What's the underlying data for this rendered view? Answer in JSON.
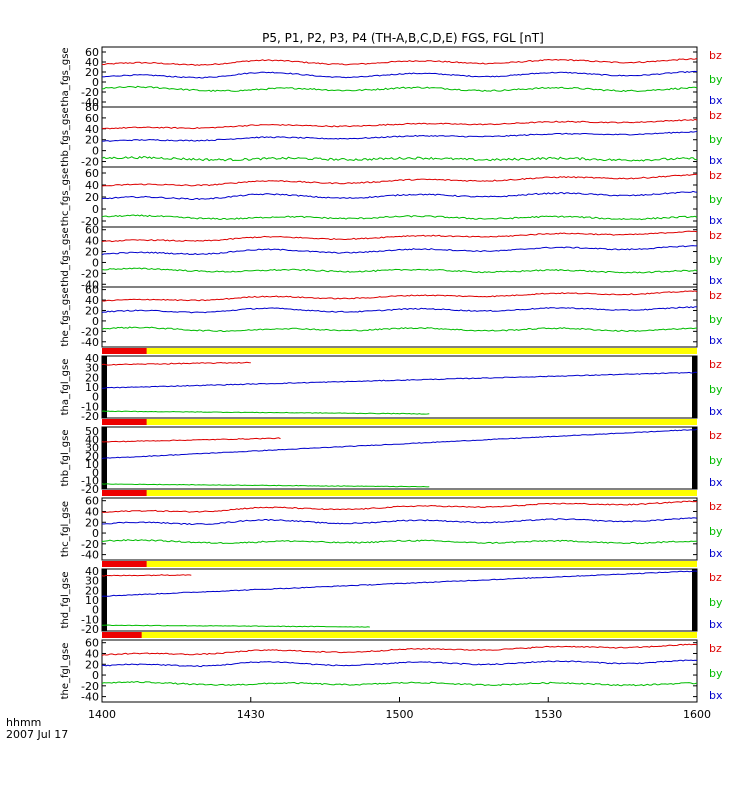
{
  "chart_data": {
    "type": "line",
    "title": "P5, P1, P2, P3, P4 (TH-A,B,C,D,E) FGS, FGL [nT]",
    "x_axis": {
      "ticks": [
        1400,
        1430,
        1500,
        1530,
        1600
      ],
      "tick_labels": [
        "1400",
        "1430",
        "1500",
        "1530",
        "1600"
      ],
      "range_minutes": [
        0,
        120
      ],
      "tick_minutes": [
        0,
        30,
        60,
        90,
        120
      ],
      "label_line1": "hhmm",
      "label_line2": "2007 Jul 17"
    },
    "series_colors": {
      "bz": "#dd0000",
      "by": "#00bb00",
      "bx": "#0000cc"
    },
    "bar_colors": {
      "red": "#ee0000",
      "yellow": "#ffff00",
      "black": "#000000"
    },
    "panels": [
      {
        "ylabel": "tha_fgs_gse",
        "ylim": [
          -50,
          70
        ],
        "ytick_values": [
          60,
          40,
          20,
          0,
          -20,
          -40
        ],
        "ytick_labels": [
          "60",
          "40",
          "20",
          "0",
          "-20",
          "-40"
        ],
        "legend": [
          "bz",
          "by",
          "bx"
        ],
        "status_bar": null,
        "edge_bars": false,
        "series": [
          {
            "name": "bz",
            "start": 35,
            "end": 43,
            "noise": 1.2,
            "wiggle": 6,
            "extent": 1.0
          },
          {
            "name": "bx",
            "start": 10,
            "end": 17,
            "noise": 1.0,
            "wiggle": 7,
            "extent": 1.0
          },
          {
            "name": "by",
            "start": -13,
            "end": -15,
            "noise": 1.5,
            "wiggle": 6,
            "extent": 1.0
          }
        ]
      },
      {
        "ylabel": "thb_fgs_gse",
        "ylim": [
          -30,
          80
        ],
        "ytick_values": [
          80,
          60,
          40,
          20,
          0,
          -20
        ],
        "ytick_labels": [
          "80",
          "60",
          "40",
          "20",
          "0",
          "-20"
        ],
        "legend": [
          "bz",
          "by",
          "bx"
        ],
        "status_bar": null,
        "edge_bars": false,
        "series": [
          {
            "name": "bz",
            "start": 40,
            "end": 55,
            "noise": 1.0,
            "wiggle": 3,
            "extent": 1.0
          },
          {
            "name": "bx",
            "start": 17,
            "end": 33,
            "noise": 1.0,
            "wiggle": 3,
            "extent": 1.0
          },
          {
            "name": "by",
            "start": -14,
            "end": -16,
            "noise": 2.0,
            "wiggle": 3,
            "extent": 1.0
          }
        ]
      },
      {
        "ylabel": "thc_fgs_gse",
        "ylim": [
          -30,
          70
        ],
        "ytick_values": [
          60,
          40,
          20,
          0,
          -20
        ],
        "ytick_labels": [
          "60",
          "40",
          "20",
          "0",
          "-20"
        ],
        "legend": [
          "bz",
          "by",
          "bx"
        ],
        "status_bar": null,
        "edge_bars": false,
        "series": [
          {
            "name": "bz",
            "start": 38,
            "end": 55,
            "noise": 1.0,
            "wiggle": 4,
            "extent": 1.0
          },
          {
            "name": "bx",
            "start": 17,
            "end": 26,
            "noise": 1.0,
            "wiggle": 5,
            "extent": 1.0
          },
          {
            "name": "by",
            "start": -13,
            "end": -15,
            "noise": 1.2,
            "wiggle": 4,
            "extent": 1.0
          }
        ]
      },
      {
        "ylabel": "thd_fgs_gse",
        "ylim": [
          -45,
          65
        ],
        "ytick_values": [
          60,
          40,
          20,
          0,
          -20,
          -40
        ],
        "ytick_labels": [
          "60",
          "40",
          "20",
          "0",
          "-20",
          "-40"
        ],
        "legend": [
          "bz",
          "by",
          "bx"
        ],
        "status_bar": null,
        "edge_bars": false,
        "series": [
          {
            "name": "bz",
            "start": 38,
            "end": 55,
            "noise": 1.0,
            "wiggle": 4,
            "extent": 1.0
          },
          {
            "name": "bx",
            "start": 15,
            "end": 28,
            "noise": 1.0,
            "wiggle": 5,
            "extent": 1.0
          },
          {
            "name": "by",
            "start": -13,
            "end": -17,
            "noise": 1.2,
            "wiggle": 4,
            "extent": 1.0
          }
        ]
      },
      {
        "ylabel": "the_fgs_gse",
        "ylim": [
          -50,
          65
        ],
        "ytick_values": [
          60,
          40,
          20,
          0,
          -20,
          -40
        ],
        "ytick_labels": [
          "60",
          "40",
          "20",
          "0",
          "-20",
          "-40"
        ],
        "legend": [
          "bz",
          "by",
          "bx"
        ],
        "status_bar": null,
        "edge_bars": false,
        "series": [
          {
            "name": "bz",
            "start": 38,
            "end": 55,
            "noise": 1.0,
            "wiggle": 4,
            "extent": 1.0
          },
          {
            "name": "bx",
            "start": 17,
            "end": 24,
            "noise": 1.0,
            "wiggle": 5,
            "extent": 1.0
          },
          {
            "name": "by",
            "start": -15,
            "end": -17,
            "noise": 1.2,
            "wiggle": 5,
            "extent": 1.0
          }
        ]
      },
      {
        "ylabel": "tha_fgl_gse",
        "ylim": [
          -22,
          42
        ],
        "ytick_values": [
          40,
          30,
          20,
          10,
          0,
          -10,
          -20
        ],
        "ytick_labels": [
          "40",
          "30",
          "20",
          "10",
          "0",
          "-10",
          "-20"
        ],
        "legend": [
          "bz",
          "by",
          "bx"
        ],
        "status_bar": {
          "red_end_minutes": 9
        },
        "edge_bars": true,
        "series": [
          {
            "name": "bz",
            "start": 33,
            "end": 42,
            "noise": 0.5,
            "wiggle": 0,
            "extent": 0.25
          },
          {
            "name": "bx",
            "start": 9,
            "end": 25,
            "noise": 0.4,
            "wiggle": 0,
            "extent": 1.0
          },
          {
            "name": "by",
            "start": -15,
            "end": -20,
            "noise": 0.3,
            "wiggle": 0,
            "extent": 0.55
          }
        ]
      },
      {
        "ylabel": "thb_fgl_gse",
        "ylim": [
          -20,
          55
        ],
        "ytick_values": [
          50,
          40,
          30,
          20,
          10,
          0,
          -10,
          -20
        ],
        "ytick_labels": [
          "50",
          "40",
          "30",
          "20",
          "10",
          "0",
          "-10",
          "-20"
        ],
        "legend": [
          "bz",
          "by",
          "bx"
        ],
        "status_bar": {
          "red_end_minutes": 9
        },
        "edge_bars": true,
        "series": [
          {
            "name": "bz",
            "start": 37,
            "end": 52,
            "noise": 0.5,
            "wiggle": 0,
            "extent": 0.3
          },
          {
            "name": "bx",
            "start": 17,
            "end": 52,
            "noise": 0.4,
            "wiggle": 0,
            "extent": 1.0
          },
          {
            "name": "by",
            "start": -14,
            "end": -20,
            "noise": 0.3,
            "wiggle": 0,
            "extent": 0.55
          }
        ]
      },
      {
        "ylabel": "thc_fgl_gse",
        "ylim": [
          -50,
          65
        ],
        "ytick_values": [
          60,
          40,
          20,
          0,
          -20,
          -40
        ],
        "ytick_labels": [
          "60",
          "40",
          "20",
          "0",
          "-20",
          "-40"
        ],
        "legend": [
          "bz",
          "by",
          "bx"
        ],
        "status_bar": {
          "red_end_minutes": 9
        },
        "edge_bars": false,
        "series": [
          {
            "name": "bz",
            "start": 38,
            "end": 57,
            "noise": 1.0,
            "wiggle": 4,
            "extent": 1.0
          },
          {
            "name": "bx",
            "start": 17,
            "end": 25,
            "noise": 1.0,
            "wiggle": 5,
            "extent": 1.0
          },
          {
            "name": "by",
            "start": -15,
            "end": -17,
            "noise": 1.2,
            "wiggle": 4,
            "extent": 1.0
          }
        ]
      },
      {
        "ylabel": "thd_fgl_gse",
        "ylim": [
          -22,
          42
        ],
        "ytick_values": [
          40,
          30,
          20,
          10,
          0,
          -10,
          -20
        ],
        "ytick_labels": [
          "40",
          "30",
          "20",
          "10",
          "0",
          "-10",
          "-20"
        ],
        "legend": [
          "bz",
          "by",
          "bx"
        ],
        "status_bar": {
          "red_end_minutes": 9
        },
        "edge_bars": true,
        "series": [
          {
            "name": "bz",
            "start": 35,
            "end": 42,
            "noise": 0.5,
            "wiggle": 0,
            "extent": 0.15
          },
          {
            "name": "bx",
            "start": 14,
            "end": 40,
            "noise": 0.4,
            "wiggle": 0,
            "extent": 1.0
          },
          {
            "name": "by",
            "start": -16,
            "end": -20,
            "noise": 0.3,
            "wiggle": 0,
            "extent": 0.45
          }
        ]
      },
      {
        "ylabel": "the_fgl_gse",
        "ylim": [
          -50,
          65
        ],
        "ytick_values": [
          60,
          40,
          20,
          0,
          -20,
          -40
        ],
        "ytick_labels": [
          "60",
          "40",
          "20",
          "0",
          "-20",
          "-40"
        ],
        "legend": [
          "bz",
          "by",
          "bx"
        ],
        "status_bar": {
          "red_end_minutes": 8
        },
        "edge_bars": false,
        "series": [
          {
            "name": "bz",
            "start": 37,
            "end": 55,
            "noise": 1.0,
            "wiggle": 4,
            "extent": 1.0
          },
          {
            "name": "bx",
            "start": 17,
            "end": 25,
            "noise": 1.0,
            "wiggle": 5,
            "extent": 1.0
          },
          {
            "name": "by",
            "start": -15,
            "end": -17,
            "noise": 1.2,
            "wiggle": 4,
            "extent": 1.0
          }
        ]
      }
    ]
  }
}
